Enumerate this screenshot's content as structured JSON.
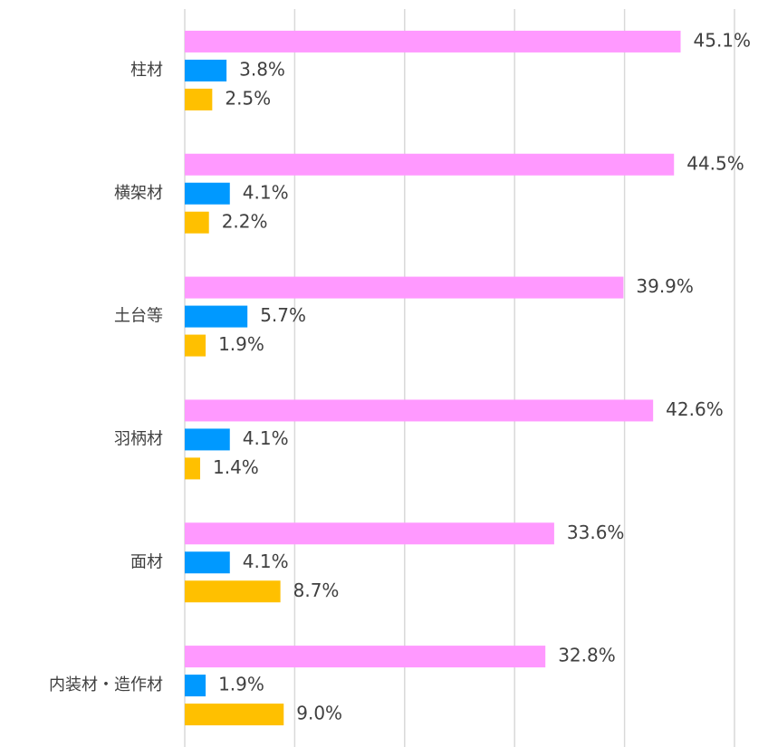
{
  "chart_data": {
    "type": "hbar",
    "categories": [
      "柱材",
      "横架材",
      "土台等",
      "羽柄材",
      "面材",
      "内装材・造作材"
    ],
    "series": [
      {
        "color": "#ff99ff",
        "values": [
          45.1,
          44.5,
          39.9,
          42.6,
          33.6,
          32.8
        ],
        "value_labels": [
          "45.1%",
          "44.5%",
          "39.9%",
          "42.6%",
          "33.6%",
          "32.8%"
        ]
      },
      {
        "color": "#0099ff",
        "values": [
          3.8,
          4.1,
          5.7,
          4.1,
          4.1,
          1.9
        ],
        "value_labels": [
          "3.8%",
          "4.1%",
          "5.7%",
          "4.1%",
          "4.1%",
          "1.9%"
        ]
      },
      {
        "color": "#ffc000",
        "values": [
          2.5,
          2.2,
          1.9,
          1.4,
          8.7,
          9.0
        ],
        "value_labels": [
          "2.5%",
          "2.2%",
          "1.9%",
          "1.4%",
          "8.7%",
          "9.0%"
        ]
      }
    ],
    "xlim": [
      0,
      50
    ],
    "xticks": [
      0,
      10,
      20,
      30,
      40,
      50
    ],
    "grid": true
  }
}
